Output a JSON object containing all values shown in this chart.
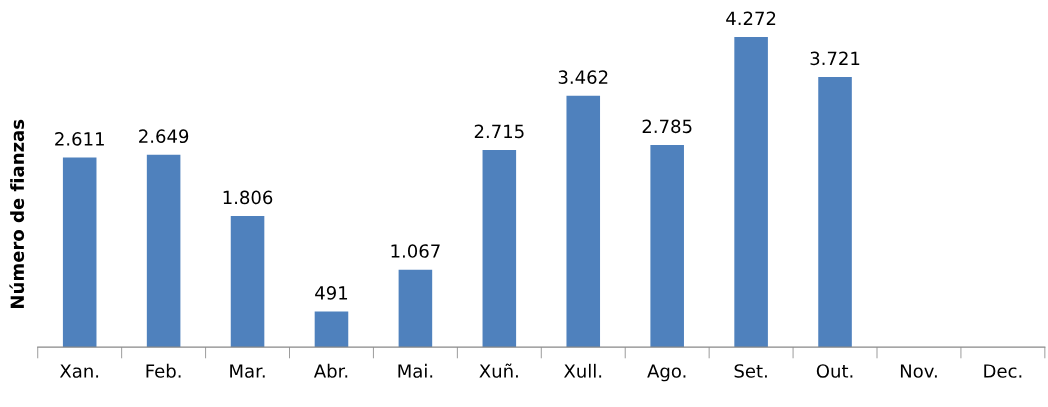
{
  "chart_data": {
    "type": "bar",
    "ylabel": "Número de fianzas",
    "categories": [
      "Xan.",
      "Feb.",
      "Mar.",
      "Abr.",
      "Mai.",
      "Xuñ.",
      "Xull.",
      "Ago.",
      "Set.",
      "Out.",
      "Nov.",
      "Dec."
    ],
    "values": [
      2611,
      2649,
      1806,
      491,
      1067,
      2715,
      3462,
      2785,
      4272,
      3721,
      null,
      null
    ],
    "value_labels": [
      "2.611",
      "2.649",
      "1.806",
      "491",
      "1.067",
      "2.715",
      "3.462",
      "2.785",
      "4.272",
      "3.721",
      null,
      null
    ],
    "color": "#4f81bd",
    "tick_labels": "x",
    "grid": false,
    "legend": false
  }
}
